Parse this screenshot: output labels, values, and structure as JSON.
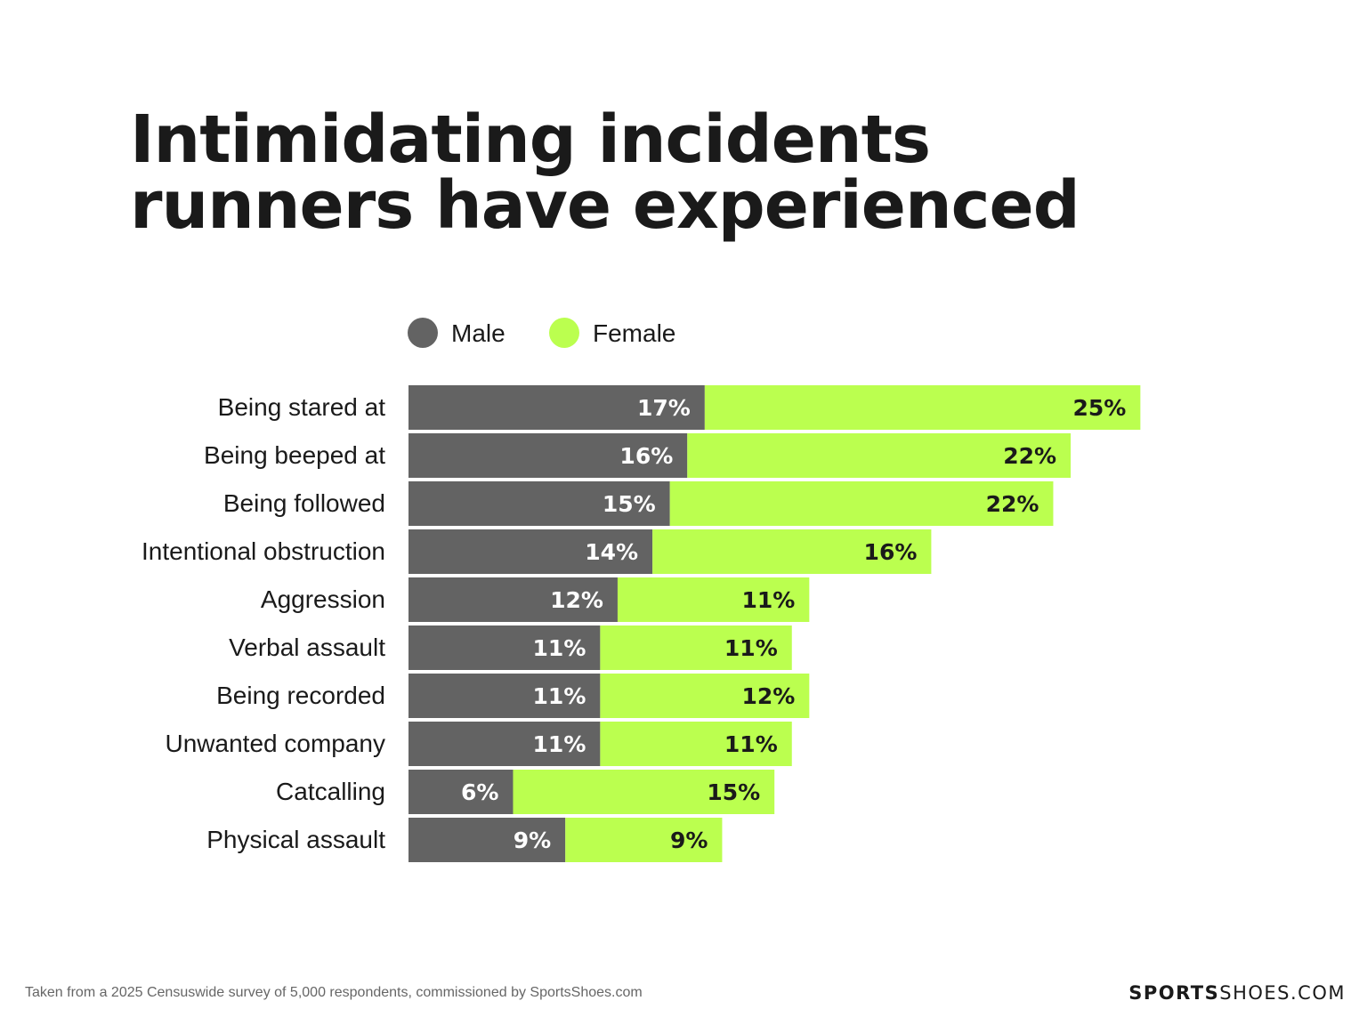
{
  "chart_data": {
    "type": "bar",
    "stacked": true,
    "orientation": "horizontal",
    "title": [
      "Intimidating incidents",
      "runners have experienced"
    ],
    "categories": [
      "Being stared at",
      "Being beeped at",
      "Being followed",
      "Intentional obstruction",
      "Aggression",
      "Verbal assault",
      "Being recorded",
      "Unwanted company",
      "Catcalling",
      "Physical assault"
    ],
    "series": [
      {
        "name": "Male",
        "color": "#636363",
        "label_color": "#ffffff",
        "values": [
          17,
          16,
          15,
          14,
          12,
          11,
          11,
          11,
          6,
          9
        ]
      },
      {
        "name": "Female",
        "color": "#bbff4f",
        "label_color": "#1a1a1a",
        "values": [
          25,
          22,
          22,
          16,
          11,
          11,
          12,
          11,
          15,
          9
        ]
      }
    ],
    "unit": "%",
    "legend": "top",
    "grid": false
  },
  "footer": {
    "source": "Taken from a 2025 Censuswide survey of 5,000 respondents, commissioned by SportsShoes.com",
    "logo_bold": "SPORTS",
    "logo_light": "SHOES.COM"
  }
}
